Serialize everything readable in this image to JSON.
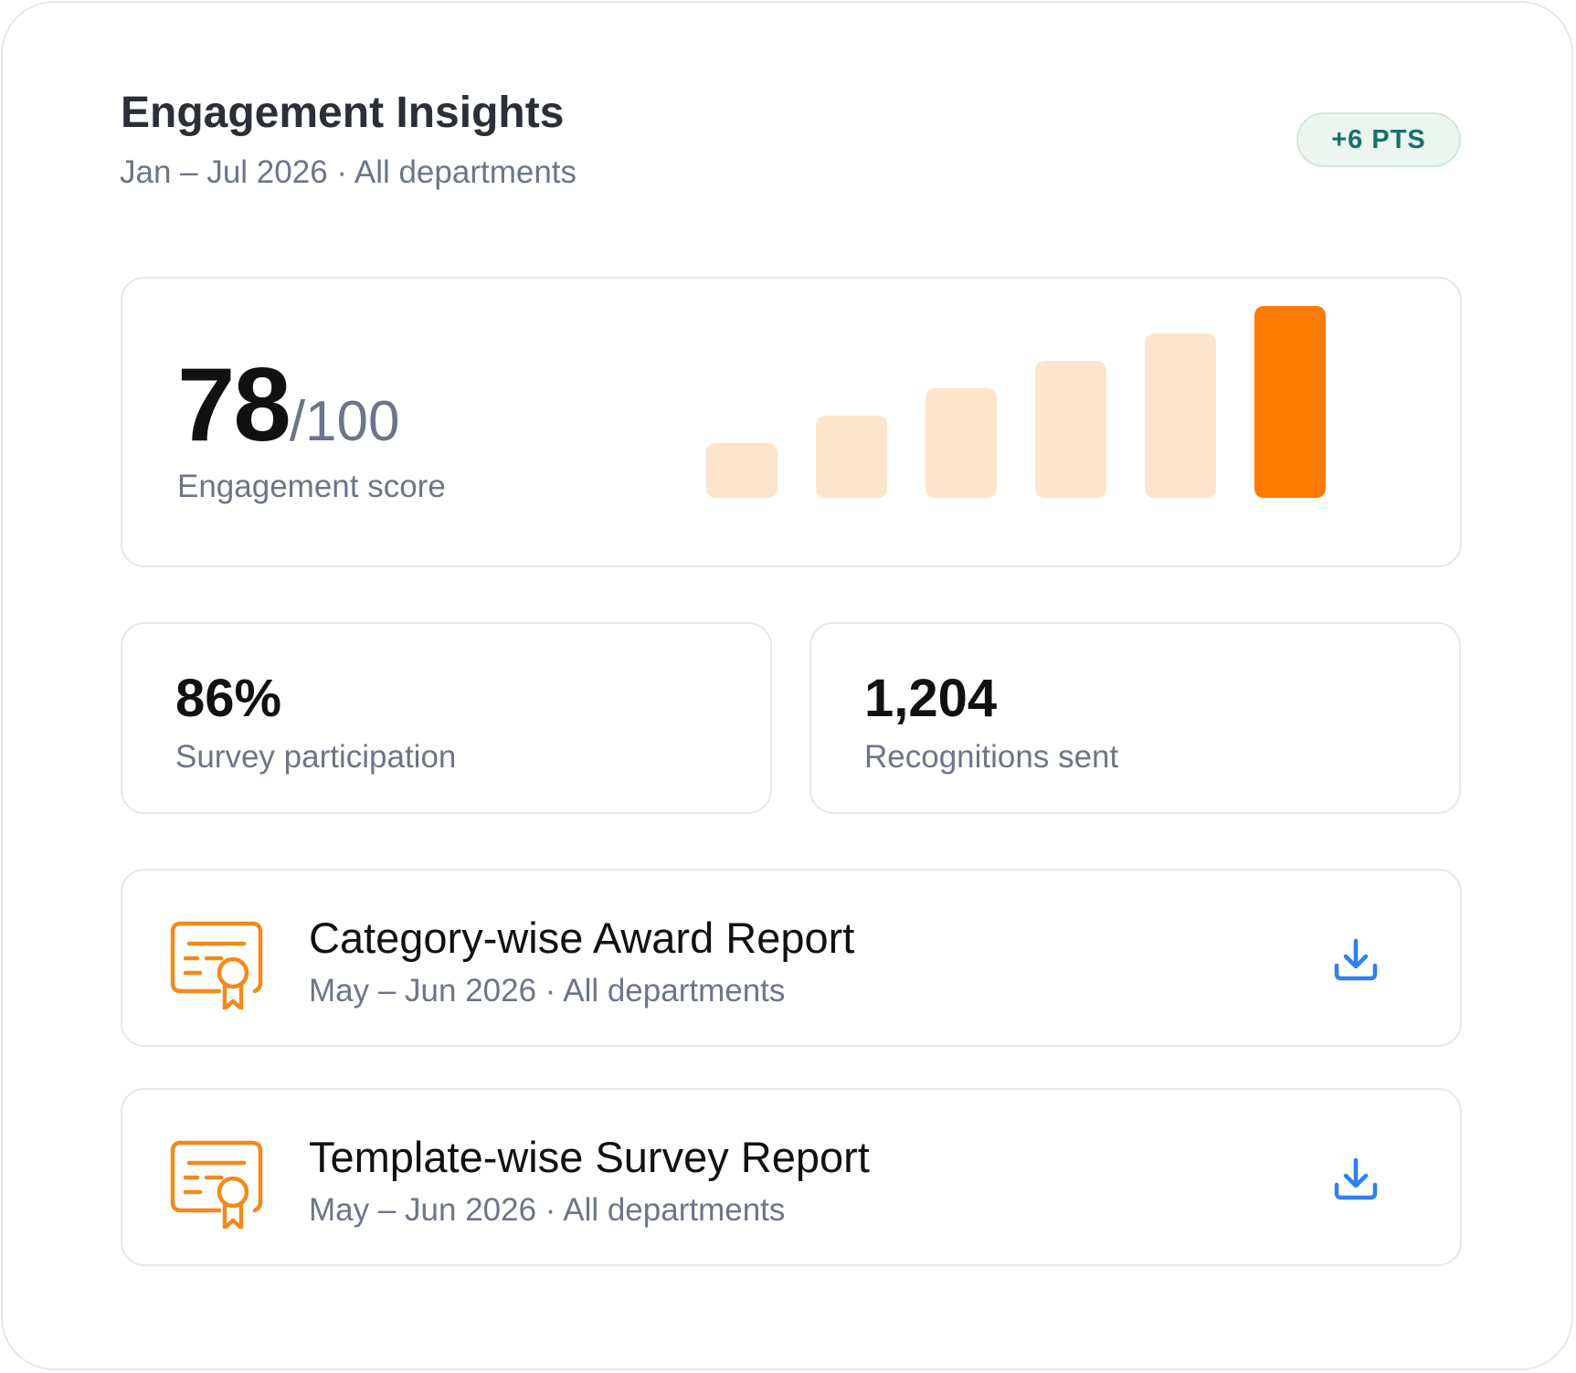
{
  "header": {
    "title": "Engagement Insights",
    "subtitle": "Jan – Jul 2026 · All departments",
    "badge": "+6 PTS"
  },
  "score": {
    "value": "78",
    "max": "/100",
    "label": "Engagement score"
  },
  "chart_data": {
    "type": "bar",
    "series": [
      {
        "values": [
          20,
          30,
          40,
          50,
          60,
          70
        ]
      }
    ],
    "highlight_index": 5,
    "colors": {
      "default": "#fde5cc",
      "highlight": "#ff7a00"
    },
    "ylim": [
      0,
      70
    ],
    "grid": false
  },
  "stats": [
    {
      "value": "86%",
      "label": "Survey participation"
    },
    {
      "value": "1,204",
      "label": "Recognitions sent"
    }
  ],
  "reports": [
    {
      "title": "Category-wise Award Report",
      "subtitle": "May – Jun 2026 · All departments",
      "icon": "certificate-icon",
      "action_icon": "download-icon"
    },
    {
      "title": "Template-wise Survey Report",
      "subtitle": "May – Jun 2026 · All departments",
      "icon": "certificate-icon",
      "action_icon": "download-icon"
    }
  ],
  "colors": {
    "accent_orange": "#f28a1a",
    "download_blue": "#2f7ff0",
    "badge_text": "#17716a",
    "badge_bg": "#eaf6ef"
  }
}
